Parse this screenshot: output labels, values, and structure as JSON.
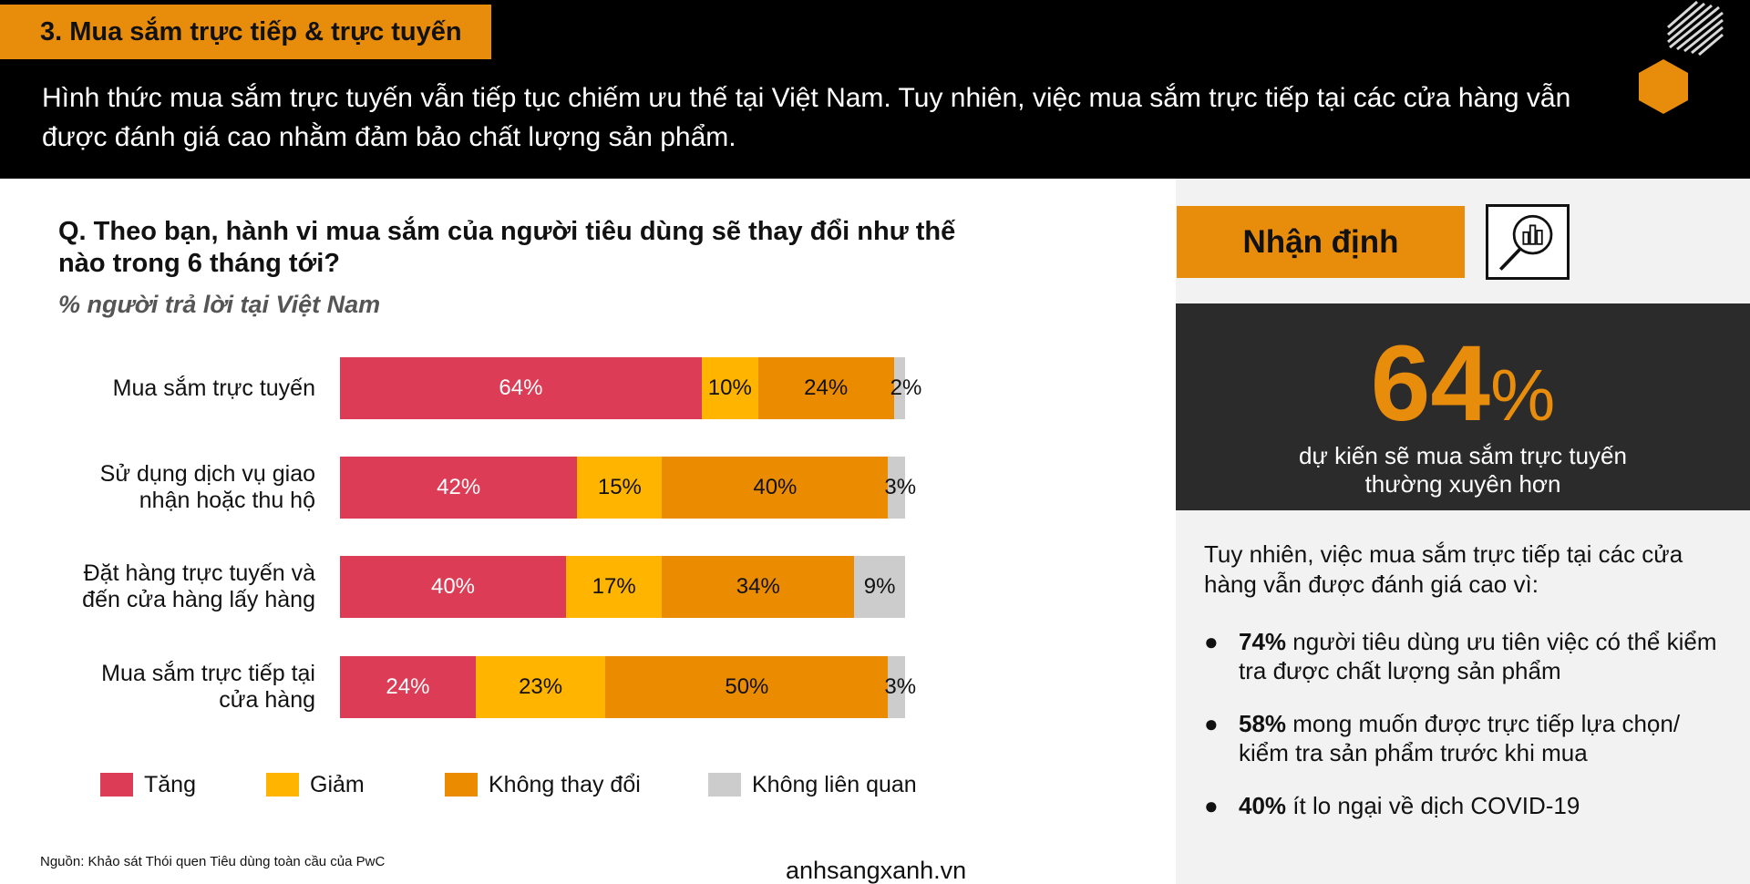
{
  "header": {
    "section": "3. Mua sắm trực tiếp & trực tuyến",
    "text": "Hình thức mua sắm trực tuyến vẫn tiếp tục chiếm ưu thế tại Việt Nam. Tuy nhiên, việc mua sắm trực tiếp tại các cửa hàng vẫn được đánh giá cao nhằm đảm bảo chất lượng sản phẩm."
  },
  "question": "Q. Theo bạn, hành vi mua sắm của người tiêu dùng sẽ thay đổi như thế nào trong 6 tháng tới?",
  "subtitle": "% người trả lời tại Việt Nam",
  "chart_data": {
    "type": "bar",
    "orientation": "horizontal",
    "stacked": true,
    "categories": [
      "Mua sắm trực tuyến",
      "Sử dụng dịch vụ giao nhận hoặc thu hộ",
      "Đặt hàng trực tuyến và đến cửa hàng lấy hàng",
      "Mua sắm trực tiếp tại cửa hàng"
    ],
    "series": [
      {
        "name": "Tăng",
        "color": "#dc3c55",
        "values": [
          64,
          42,
          40,
          24
        ]
      },
      {
        "name": "Giảm",
        "color": "#ffb400",
        "values": [
          10,
          15,
          17,
          23
        ]
      },
      {
        "name": "Không thay đổi",
        "color": "#eb8c00",
        "values": [
          24,
          40,
          34,
          50
        ]
      },
      {
        "name": "Không liên quan",
        "color": "#cccccc",
        "values": [
          2,
          3,
          9,
          3
        ]
      }
    ],
    "legend_position": "bottom",
    "grid": false
  },
  "source": "Nguồn: Khảo sát  Thói quen Tiêu dùng toàn cầu của PwC",
  "watermark": "anhsangxanh.vn",
  "insight": {
    "badge": "Nhận định",
    "big_number": "64",
    "big_unit": "%",
    "caption_line1": "dự kiến sẽ mua sắm trực tuyến",
    "caption_line2": "thường xuyên hơn",
    "intro": "Tuy nhiên, việc mua sắm trực tiếp tại các cửa hàng vẫn được đánh giá cao vì:",
    "bullets": [
      {
        "bold": "74%",
        "text": " người tiêu dùng ưu tiên việc có thể kiểm tra được chất lượng sản phẩm"
      },
      {
        "bold": "58%",
        "text": " mong muốn được trực tiếp lựa chọn/ kiểm tra sản phẩm trước khi mua"
      },
      {
        "bold": "40%",
        "text": " ít lo ngại về dịch COVID-19"
      }
    ],
    "bullet_char": "●"
  }
}
